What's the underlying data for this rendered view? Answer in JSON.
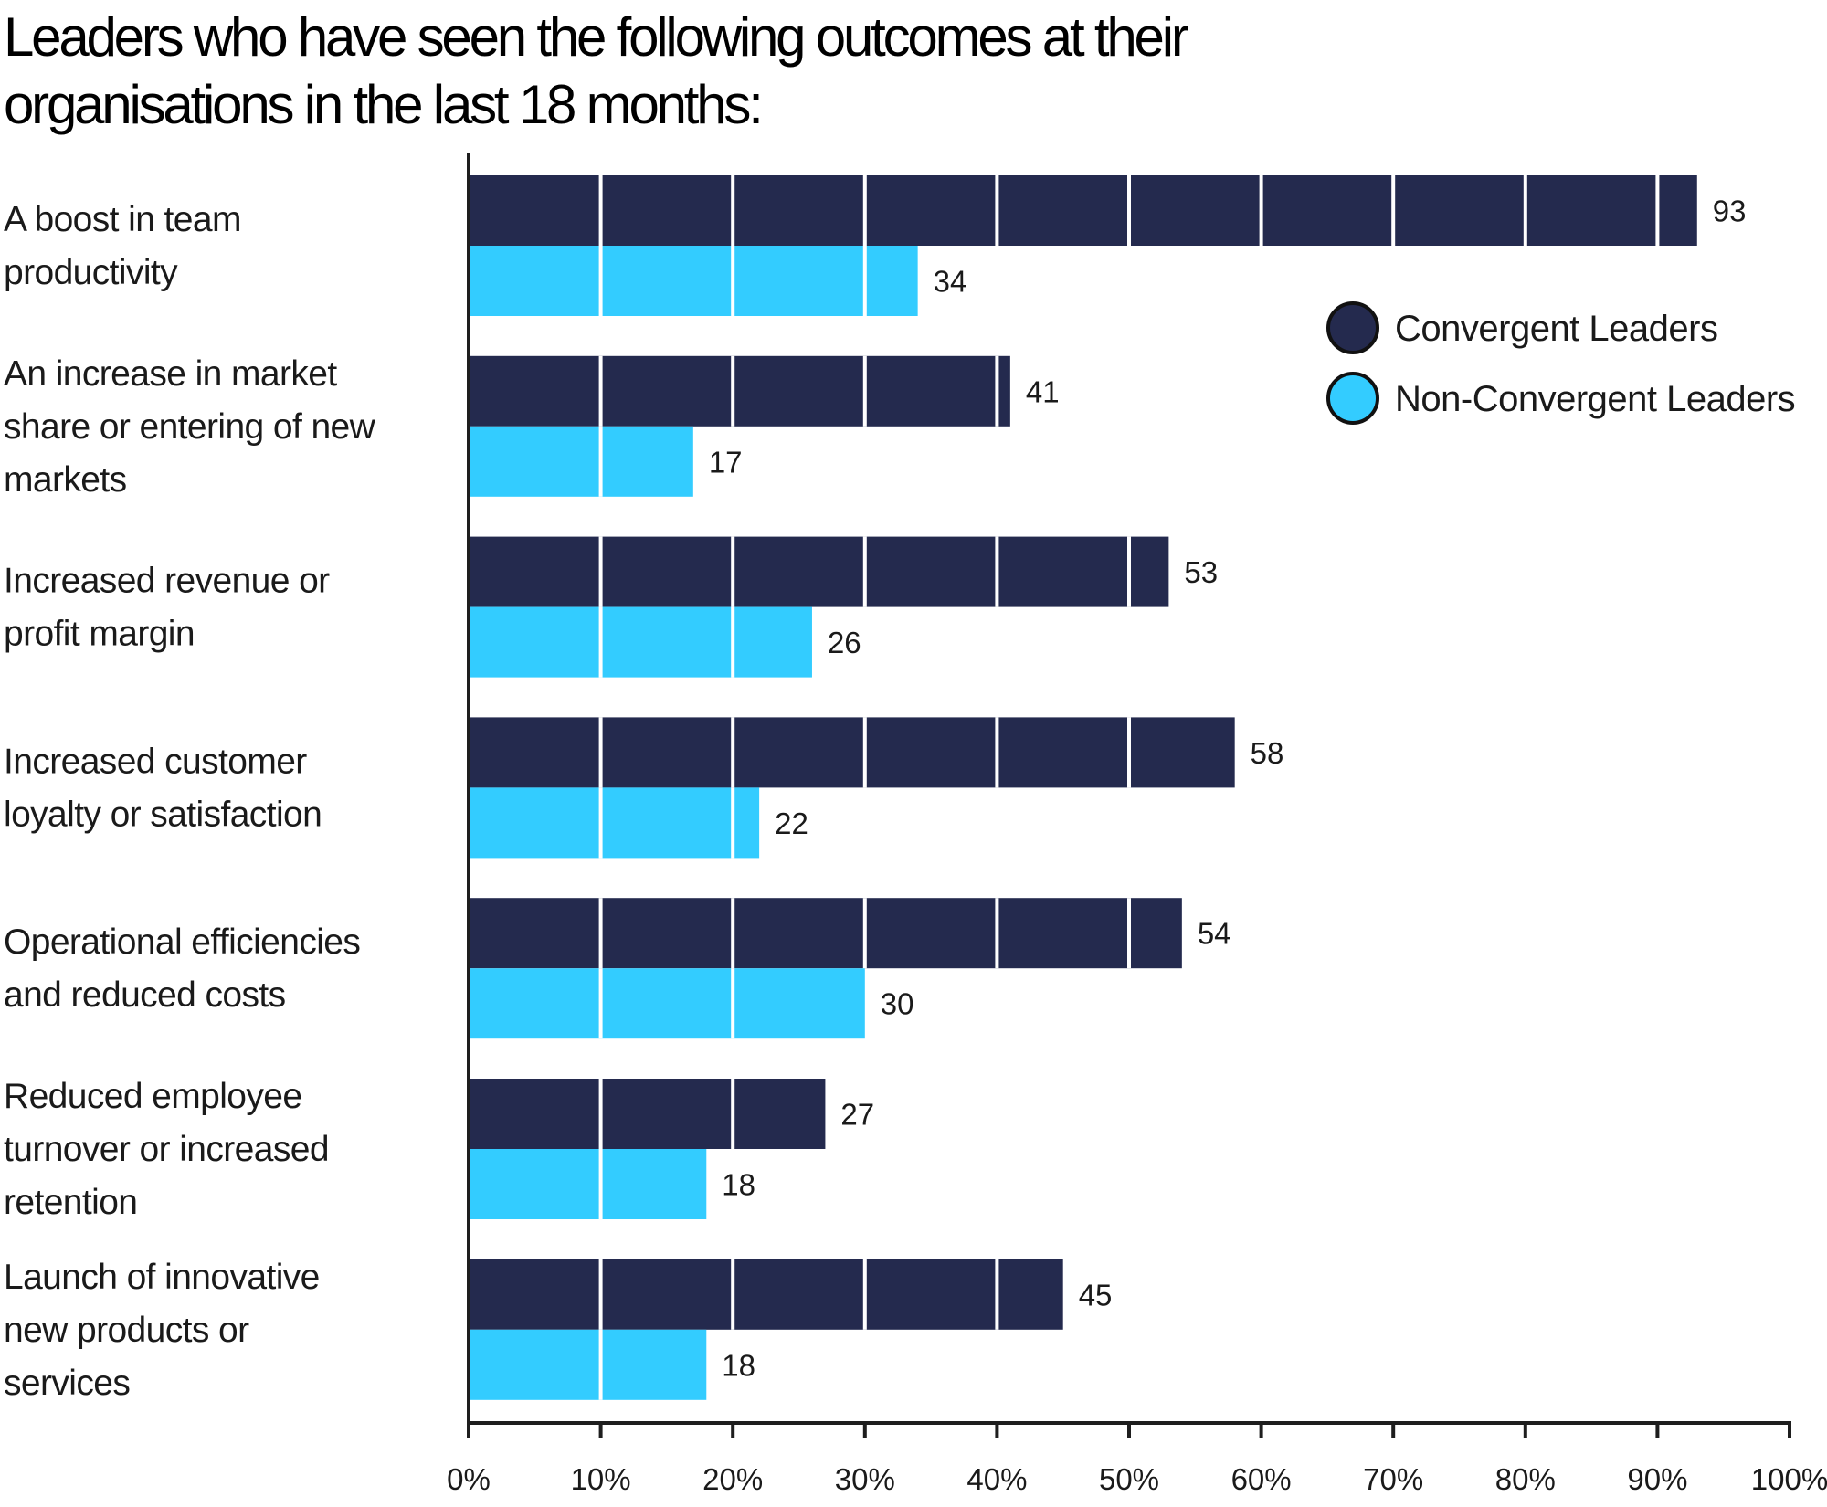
{
  "chart_data": {
    "type": "bar",
    "orientation": "horizontal",
    "title": "Leaders who have seen the following outcomes at their\norganisations in the last 18 months:",
    "categories": [
      [
        "A boost in team",
        "productivity"
      ],
      [
        "An increase in market",
        "share or entering of new",
        "markets"
      ],
      [
        "Increased revenue or",
        "profit margin"
      ],
      [
        "Increased customer",
        "loyalty or satisfaction"
      ],
      [
        "Operational efficiencies",
        "and reduced costs"
      ],
      [
        "Reduced employee",
        "turnover or increased",
        "retention"
      ],
      [
        "Launch of innovative",
        "new products or",
        "services"
      ]
    ],
    "series": [
      {
        "name": "Convergent Leaders",
        "color": "#242A4E",
        "values": [
          93,
          41,
          53,
          58,
          54,
          27,
          45
        ]
      },
      {
        "name": "Non-Convergent Leaders",
        "color": "#33CCFF",
        "values": [
          34,
          17,
          26,
          22,
          30,
          18,
          18
        ]
      }
    ],
    "xlabel": "",
    "ylabel": "",
    "xlim": [
      0,
      100
    ],
    "xticks": [
      "0%",
      "10%",
      "20%",
      "30%",
      "40%",
      "50%",
      "60%",
      "70%",
      "80%",
      "90%",
      "100%"
    ],
    "grid": "white lines at each 10% drawn over bars only",
    "legend_position": "top-right",
    "data_labels": true
  }
}
